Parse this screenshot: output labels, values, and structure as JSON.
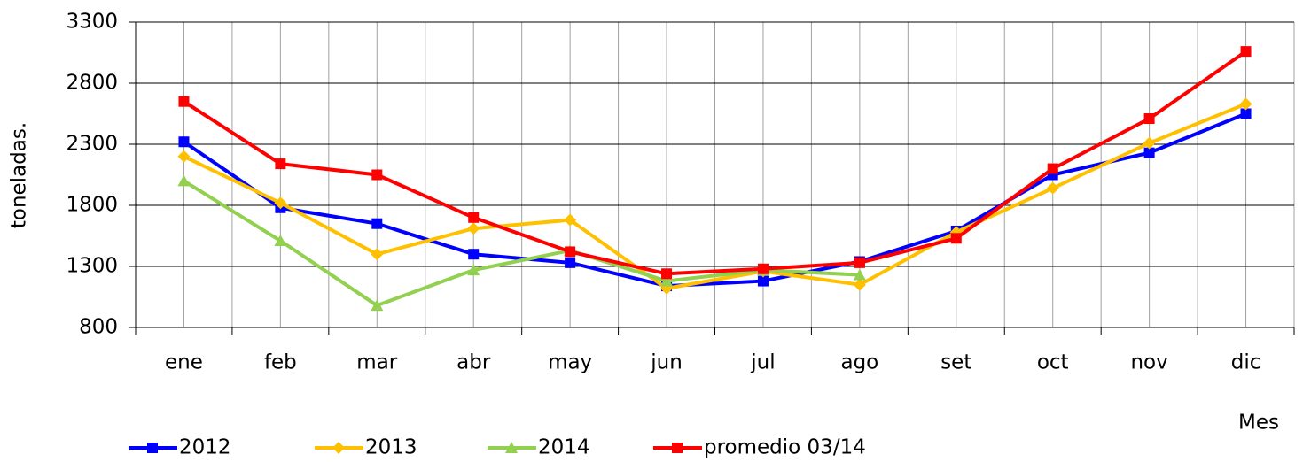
{
  "chart_data": {
    "type": "line",
    "ylabel": "toneladas.",
    "xlabel": "Mes",
    "categories": [
      "ene",
      "feb",
      "mar",
      "abr",
      "may",
      "jun",
      "jul",
      "ago",
      "set",
      "oct",
      "nov",
      "dic"
    ],
    "series": [
      {
        "name": "2012",
        "color": "#0000ff",
        "marker": "square",
        "values": [
          2320,
          1780,
          1650,
          1400,
          1330,
          1140,
          1180,
          1340,
          1590,
          2050,
          2230,
          2550
        ]
      },
      {
        "name": "2013",
        "color": "#ffc000",
        "marker": "diamond",
        "values": [
          2200,
          1820,
          1400,
          1610,
          1680,
          1120,
          1260,
          1150,
          1580,
          1940,
          2310,
          2630
        ]
      },
      {
        "name": "2014",
        "color": "#92d050",
        "marker": "triangle",
        "values": [
          2000,
          1510,
          980,
          1270,
          1430,
          1180,
          1270,
          1230,
          null,
          null,
          null,
          null
        ]
      },
      {
        "name": "promedio 03/14",
        "color": "#ff0000",
        "marker": "square",
        "values": [
          2650,
          2140,
          2050,
          1700,
          1420,
          1240,
          1280,
          1330,
          1530,
          2100,
          2510,
          3060
        ]
      }
    ],
    "ylim": [
      800,
      3300
    ],
    "yticks": [
      800,
      1300,
      1800,
      2300,
      2800,
      3300
    ],
    "grid": true
  }
}
